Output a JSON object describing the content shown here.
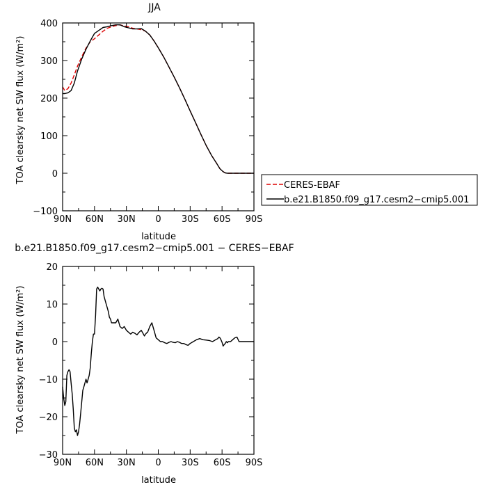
{
  "chart_data": [
    {
      "type": "line",
      "title": "JJA",
      "xlabel": "",
      "ylabel": "TOA clearsky net SW flux (W/m²)",
      "xlim": [
        90,
        -90
      ],
      "ylim": [
        -100,
        400
      ],
      "x_ticks": [
        90,
        60,
        30,
        0,
        -30,
        -60,
        -90
      ],
      "x_tick_labels": [
        "90N",
        "60N",
        "30N",
        "0",
        "30S",
        "60S",
        "90S"
      ],
      "y_ticks": [
        -100,
        0,
        100,
        200,
        300,
        400
      ],
      "y_tick_labels": [
        "−100",
        "0",
        "100",
        "200",
        "300",
        "400"
      ],
      "legend_position": "right",
      "series": [
        {
          "name": "CERES-EBAF",
          "color": "#dd0000",
          "dash": "dashed",
          "x": [
            90,
            88,
            85,
            82,
            79,
            76,
            72,
            68,
            64,
            60,
            56,
            52,
            48,
            44,
            40,
            36,
            32,
            28,
            24,
            20,
            16,
            12,
            8,
            4,
            0,
            -5,
            -10,
            -15,
            -20,
            -25,
            -30,
            -35,
            -40,
            -45,
            -50,
            -55,
            -58,
            -61,
            -63,
            -65,
            -68,
            -72,
            -76,
            -80,
            -85,
            -90
          ],
          "y": [
            230,
            220,
            225,
            240,
            262,
            285,
            310,
            333,
            350,
            358,
            368,
            378,
            386,
            390,
            393,
            395,
            392,
            390,
            386,
            384,
            382,
            378,
            368,
            352,
            334,
            310,
            283,
            256,
            227,
            197,
            166,
            135,
            104,
            74,
            48,
            26,
            12,
            4,
            1,
            0,
            0,
            0,
            0,
            0,
            0,
            0
          ]
        },
        {
          "name": "b.e21.B1850.f09_g17.cesm2−cmip5.001",
          "color": "#000000",
          "dash": "solid",
          "x": [
            90,
            88,
            85,
            82,
            79,
            76,
            72,
            68,
            64,
            60,
            56,
            52,
            48,
            44,
            40,
            36,
            32,
            28,
            24,
            20,
            16,
            12,
            8,
            4,
            0,
            -5,
            -10,
            -15,
            -20,
            -25,
            -30,
            -35,
            -40,
            -45,
            -50,
            -55,
            -58,
            -61,
            -63,
            -65,
            -68,
            -72,
            -76,
            -80,
            -85,
            -90
          ],
          "y": [
            212,
            212,
            214,
            220,
            240,
            272,
            304,
            330,
            352,
            372,
            380,
            388,
            390,
            393,
            395,
            395,
            390,
            387,
            384,
            384,
            385,
            378,
            368,
            352,
            334,
            310,
            283,
            256,
            227,
            197,
            166,
            135,
            104,
            74,
            48,
            26,
            12,
            4,
            1,
            0,
            0,
            0,
            0,
            0,
            0,
            0
          ]
        }
      ]
    },
    {
      "type": "line",
      "title": "b.e21.B1850.f09_g17.cesm2−cmip5.001 − CERES−EBAF",
      "xlabel": "latitude",
      "ylabel": "TOA clearsky net SW flux (W/m²)",
      "xlim": [
        90,
        -90
      ],
      "ylim": [
        -30,
        20
      ],
      "x_ticks": [
        90,
        60,
        30,
        0,
        -30,
        -60,
        -90
      ],
      "x_tick_labels": [
        "90N",
        "60N",
        "30N",
        "0",
        "30S",
        "60S",
        "90S"
      ],
      "y_ticks": [
        -30,
        -20,
        -10,
        0,
        10,
        20
      ],
      "y_tick_labels": [
        "−30",
        "−20",
        "−10",
        "0",
        "10",
        "20"
      ],
      "series": [
        {
          "name": "",
          "color": "#000000",
          "dash": "solid",
          "x": [
            90,
            89,
            88,
            87,
            86,
            85,
            84,
            83,
            82,
            81,
            80,
            79,
            78,
            77,
            76,
            75,
            74,
            73,
            72,
            71,
            70,
            69,
            68,
            67,
            66,
            65,
            64,
            63,
            62,
            61,
            60,
            59,
            58,
            57,
            56,
            55,
            54,
            53,
            52,
            51,
            50,
            49,
            48,
            47,
            46,
            45,
            44,
            42,
            40,
            38,
            36,
            34,
            32,
            30,
            28,
            26,
            24,
            22,
            20,
            18,
            16,
            14,
            13,
            12,
            11,
            10,
            8,
            6,
            4,
            2,
            0,
            -2,
            -4,
            -6,
            -8,
            -10,
            -12,
            -14,
            -16,
            -18,
            -20,
            -22,
            -24,
            -26,
            -28,
            -30,
            -33,
            -36,
            -39,
            -42,
            -45,
            -48,
            -51,
            -54,
            -56,
            -57,
            -58,
            -59,
            -60,
            -61,
            -62,
            -63,
            -64,
            -65,
            -66,
            -68,
            -70,
            -72,
            -74,
            -76,
            -78,
            -80,
            -84,
            -90
          ],
          "y": [
            -12,
            -15,
            -17,
            -16,
            -9,
            -8,
            -7.5,
            -8,
            -11,
            -14,
            -18,
            -23,
            -24,
            -23.5,
            -25,
            -24,
            -22,
            -19,
            -16,
            -13,
            -12,
            -11,
            -10,
            -11,
            -10,
            -9,
            -7,
            -3,
            0,
            2,
            2,
            7,
            14,
            14.5,
            14,
            13.5,
            14,
            14.2,
            14,
            12,
            11,
            10,
            9,
            8,
            6.5,
            6,
            5,
            5,
            5,
            6,
            4,
            3.5,
            4,
            3,
            2.5,
            2,
            2.5,
            2.2,
            1.8,
            2.5,
            3,
            2,
            1.5,
            2,
            2.3,
            2.5,
            4,
            5,
            3,
            1,
            0.5,
            0,
            0,
            -0.3,
            -0.5,
            -0.2,
            0,
            -0.2,
            -0.3,
            0,
            -0.2,
            -0.5,
            -0.5,
            -0.8,
            -1,
            -0.5,
            0,
            0.5,
            0.8,
            0.5,
            0.4,
            0.3,
            0,
            0.5,
            0.8,
            1.2,
            1.0,
            0.5,
            -0.2,
            -1.2,
            -0.8,
            -0.5,
            0,
            -0.3,
            0,
            0,
            0.5,
            1,
            1.2,
            0,
            0,
            0,
            0,
            0
          ]
        }
      ]
    }
  ]
}
